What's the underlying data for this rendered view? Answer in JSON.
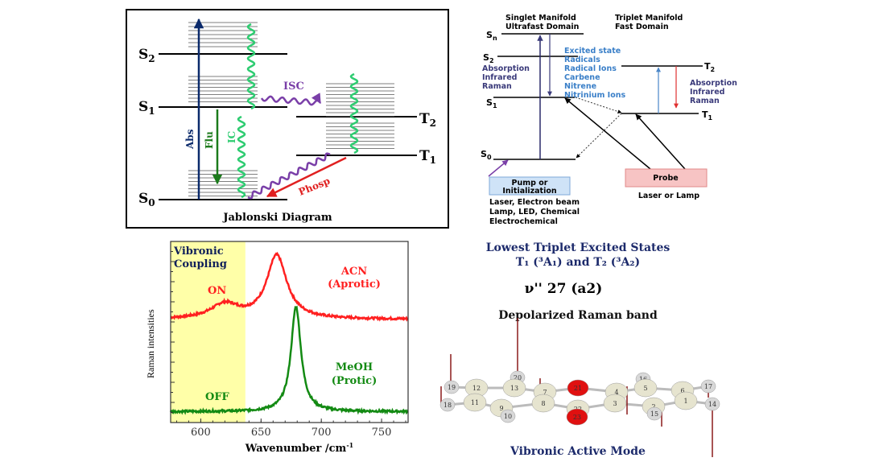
{
  "jablonski": {
    "title": "Jablonski Diagram",
    "levels": {
      "s2": "S",
      "s2_sub": "2",
      "s1": "S",
      "s1_sub": "1",
      "s0": "S",
      "s0_sub": "0",
      "t2": "T",
      "t2_sub": "2",
      "t1": "T",
      "t1_sub": "1"
    },
    "processes": {
      "abs": "Abs",
      "flu": "Flu",
      "ic": "IC",
      "isc": "ISC",
      "phosp": "Phosp"
    },
    "colors": {
      "abs": "#0b2a6b",
      "flu": "#1b7a1b",
      "ic": "#2ecc71",
      "isc": "#7a3fa8",
      "phosp": "#e02020"
    }
  },
  "manifold": {
    "singlet_title_1": "Singlet Manifold",
    "singlet_title_2": "Ultrafast Domain",
    "triplet_title_1": "Triplet Manifold",
    "triplet_title_2": "Fast Domain",
    "levels": {
      "sn": "S",
      "sn_sub": "n",
      "s2": "S",
      "s2_sub": "2",
      "s1": "S",
      "s1_sub": "1",
      "s0": "S",
      "s0_sub": "0",
      "t2": "T",
      "t2_sub": "2",
      "t1": "T",
      "t1_sub": "1"
    },
    "singlet_methods": [
      "Absorption",
      "Infrared",
      "Raman"
    ],
    "species": [
      "Excited state",
      "Radicals",
      "Radical Ions",
      "Carbene",
      "Nitrene",
      "Nitrinium Ions"
    ],
    "triplet_methods": [
      "Absorption",
      "Infrared",
      "Raman"
    ],
    "pump_label_1": "Pump or",
    "pump_label_2": "Initialization",
    "pump_sources": [
      "Laser, Electron beam",
      "Lamp, LED, Chemical",
      "Electrochemical"
    ],
    "probe_label": "Probe",
    "probe_source": "Laser or Lamp",
    "colors": {
      "methods": "#3a3a7a",
      "species": "#3a7fc8",
      "pump_box": "#cfe3f7",
      "probe_box": "#f7c4c4"
    }
  },
  "chart_data": {
    "type": "line",
    "xlabel": "Wavenumber /cm",
    "xlabel_sup": "-1",
    "ylabel": "Raman intensities",
    "xlim": [
      575,
      772
    ],
    "ylim": [
      0,
      1
    ],
    "x_ticks": [
      "600",
      "650",
      "700",
      "750"
    ],
    "shaded_region": {
      "x": [
        575,
        637
      ],
      "color": "#ffffa8",
      "label_1": "Vibronic",
      "label_2": "Coupling"
    },
    "series": [
      {
        "name": "ACN (Aprotic)",
        "label_1": "ACN",
        "label_2": "(Aprotic)",
        "state": "ON",
        "color": "#ff2020",
        "baseline": 0.57,
        "peaks": [
          {
            "x": 620,
            "height": 0.08,
            "width": 14
          },
          {
            "x": 663,
            "height": 0.35,
            "width": 10
          }
        ]
      },
      {
        "name": "MeOH (Protic)",
        "label_1": "MeOH",
        "label_2": "(Protic)",
        "state": "OFF",
        "color": "#138a13",
        "baseline": 0.06,
        "peaks": [
          {
            "x": 679,
            "height": 0.58,
            "width": 5
          }
        ]
      }
    ]
  },
  "right_text": {
    "line1": "Lowest Triplet Excited States",
    "line2": "T₁ (³A₁) and T₂ (³A₂)",
    "mode": "ν'' 27 (a2)",
    "mode_nu": "ν''",
    "mode_sub": "27",
    "mode_sym": "(a",
    "mode_sym_sub": "2",
    "mode_close": ")",
    "band": "Depolarized Raman band",
    "caption": "Vibronic Active Mode",
    "color": "#1c2a6b"
  },
  "molecule": {
    "atoms": [
      {
        "n": "19",
        "el": "H"
      },
      {
        "n": "18",
        "el": "H"
      },
      {
        "n": "12",
        "el": "C"
      },
      {
        "n": "11",
        "el": "C"
      },
      {
        "n": "20",
        "el": "H"
      },
      {
        "n": "13",
        "el": "C"
      },
      {
        "n": "9",
        "el": "C"
      },
      {
        "n": "10",
        "el": "H"
      },
      {
        "n": "7",
        "el": "C"
      },
      {
        "n": "8",
        "el": "C"
      },
      {
        "n": "21",
        "el": "O"
      },
      {
        "n": "22",
        "el": "C"
      },
      {
        "n": "23",
        "el": "O"
      },
      {
        "n": "4",
        "el": "C"
      },
      {
        "n": "3",
        "el": "C"
      },
      {
        "n": "16",
        "el": "H"
      },
      {
        "n": "5",
        "el": "C"
      },
      {
        "n": "2",
        "el": "C"
      },
      {
        "n": "15",
        "el": "H"
      },
      {
        "n": "6",
        "el": "C"
      },
      {
        "n": "1",
        "el": "C"
      },
      {
        "n": "17",
        "el": "H"
      },
      {
        "n": "14",
        "el": "H"
      }
    ],
    "colors": {
      "C": "#e6e4cf",
      "H": "#d8d8d8",
      "O": "#e01010",
      "vector": "#8b1a1a"
    }
  }
}
